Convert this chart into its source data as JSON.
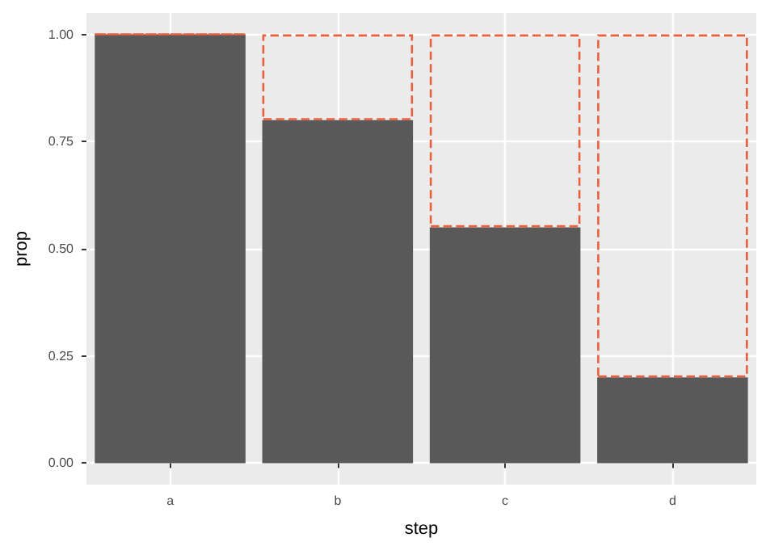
{
  "chart_data": {
    "type": "bar",
    "xlabel": "step",
    "ylabel": "prop",
    "categories": [
      "a",
      "b",
      "c",
      "d"
    ],
    "stacked": true,
    "series": [
      {
        "color": "#595959",
        "values": [
          1,
          0.8,
          0.55,
          0.2
        ]
      },
      {
        "color": "#e8603c",
        "line_style": "dashed",
        "values": [
          0,
          0.2,
          0.45,
          0.8
        ]
      }
    ],
    "ylim": [
      -0.05,
      1.05
    ],
    "yticks": [
      {
        "value": 0,
        "label": "0.00"
      },
      {
        "value": 0.25,
        "label": "0.25"
      },
      {
        "value": 0.5,
        "label": "0.50"
      },
      {
        "value": 0.75,
        "label": "0.75"
      },
      {
        "value": 1,
        "label": "1.00"
      }
    ],
    "grid": true
  }
}
